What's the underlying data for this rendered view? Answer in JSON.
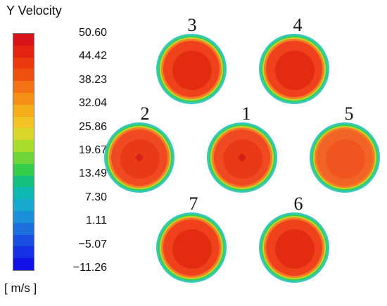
{
  "legend": {
    "title": "Y Velocity",
    "units": "[ m/s ]",
    "tick_labels": [
      "50.60",
      "44.42",
      "38.23",
      "32.04",
      "25.86",
      "19.67",
      "13.49",
      "7.30",
      "1.11",
      "−5.07",
      "−11.26"
    ],
    "bands_top_to_bottom": [
      "#d8141a",
      "#e32410",
      "#ea3a0e",
      "#ee5010",
      "#f27214",
      "#f58f17",
      "#f7ae1c",
      "#f2c524",
      "#d9d72a",
      "#a9dd2c",
      "#6fd63a",
      "#35cd4a",
      "#15c07e",
      "#0fb8b0",
      "#19a9cf",
      "#1b8fd8",
      "#1c6fdd",
      "#1a4ee0",
      "#1630e3",
      "#1212e6"
    ]
  },
  "plots": [
    {
      "label": "1",
      "core": "#e83a16",
      "ring": "#f47e25",
      "inner": "#f04a22"
    },
    {
      "label": "2",
      "core": "#e83a16",
      "ring": "#f47e25",
      "inner": "#f04a22"
    },
    {
      "label": "3",
      "core": "#e32b12",
      "ring": "#f47e25",
      "inner": "#ef421c"
    },
    {
      "label": "4",
      "core": "#e32b12",
      "ring": "#f47e25",
      "inner": "#ef421c"
    },
    {
      "label": "5",
      "core": "#f1541f",
      "ring": "#f47e25",
      "inner": "#f26426"
    },
    {
      "label": "6",
      "core": "#e32b12",
      "ring": "#f47e25",
      "inner": "#ef421c"
    },
    {
      "label": "7",
      "core": "#e32b12",
      "ring": "#f47e25",
      "inner": "#ef421c"
    }
  ]
}
